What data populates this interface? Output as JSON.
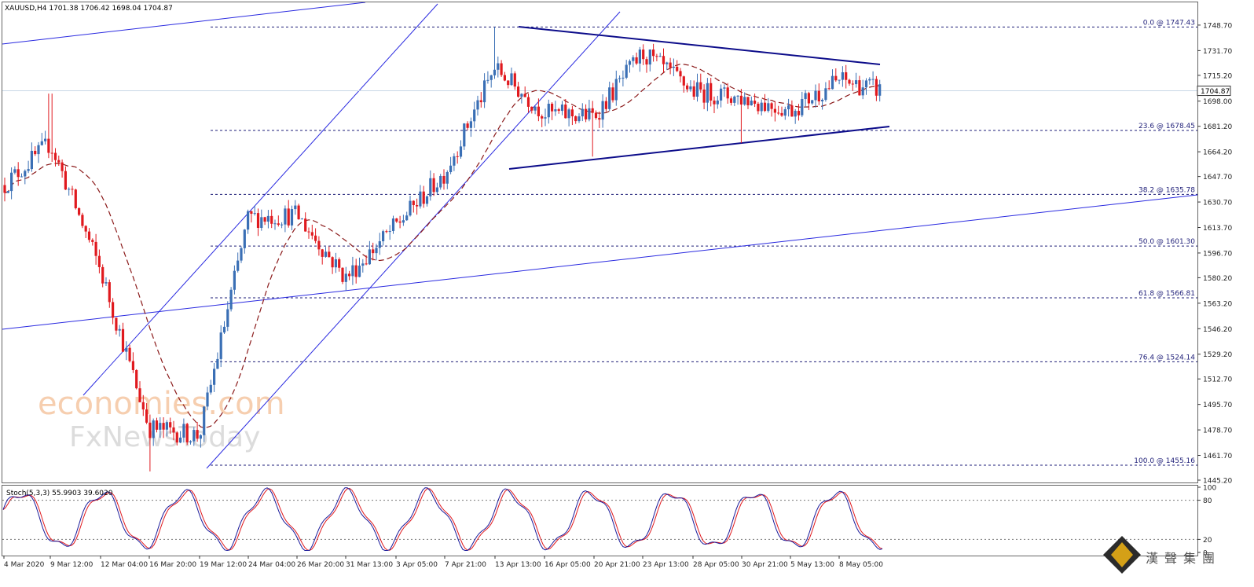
{
  "chart_data": {
    "type": "candlestick",
    "symbol_header": "XAUUSD,H4  1701.38 1706.42 1698.04 1704.87",
    "last_price": 1704.87,
    "last_price_label": "1704.87",
    "ylim": [
      1445.2,
      1756.0
    ],
    "y_ticks": [
      1748.7,
      1731.7,
      1715.2,
      1698.0,
      1681.2,
      1664.2,
      1647.7,
      1630.7,
      1613.7,
      1596.7,
      1580.2,
      1563.2,
      1546.2,
      1529.2,
      1512.7,
      1495.7,
      1478.7,
      1461.7,
      1445.2
    ],
    "y_tick_labels": [
      "1748.70",
      "1731.70",
      "1715.20",
      "1698.00",
      "1681.20",
      "1664.20",
      "1647.70",
      "1630.70",
      "1613.70",
      "1596.70",
      "1580.20",
      "1563.20",
      "1546.20",
      "1529.20",
      "1512.70",
      "1495.70",
      "1478.70",
      "1461.70",
      "1445.20"
    ],
    "x_tick_labels": [
      "4 Mar 2020",
      "9 Mar 12:00",
      "12 Mar 04:00",
      "16 Mar 20:00",
      "19 Mar 12:00",
      "24 Mar 04:00",
      "26 Mar 20:00",
      "31 Mar 13:00",
      "3 Apr 05:00",
      "7 Apr 21:00",
      "13 Apr 13:00",
      "16 Apr 05:00",
      "20 Apr 21:00",
      "23 Apr 13:00",
      "28 Apr 05:00",
      "30 Apr 21:00",
      "5 May 13:00",
      "8 May 05:00"
    ],
    "fibonacci_levels": [
      {
        "label": "0.0 @ 1747.43",
        "value": 1747.43
      },
      {
        "label": "23.6 @ 1678.45",
        "value": 1678.45
      },
      {
        "label": "38.2 @ 1635.78",
        "value": 1635.78
      },
      {
        "label": "50.0 @ 1601.30",
        "value": 1601.3
      },
      {
        "label": "61.8 @ 1566.81",
        "value": 1566.81
      },
      {
        "label": "76.4 @ 1524.14",
        "value": 1524.14
      },
      {
        "label": "100.0 @ 1455.16",
        "value": 1455.16
      }
    ],
    "key_points": [
      {
        "x": "4 Mar 2020",
        "close": 1642
      },
      {
        "x": "9 Mar 12:00",
        "high": 1703,
        "close": 1670
      },
      {
        "x": "12 Mar 04:00",
        "close": 1585
      },
      {
        "x": "16 Mar 20:00",
        "low": 1451,
        "close": 1480
      },
      {
        "x": "19 Mar 12:00",
        "close": 1475
      },
      {
        "x": "24 Mar 04:00",
        "close": 1620
      },
      {
        "x": "26 Mar 20:00",
        "close": 1622
      },
      {
        "x": "31 Mar 13:00",
        "close": 1580
      },
      {
        "x": "3 Apr 05:00",
        "close": 1615
      },
      {
        "x": "7 Apr 21:00",
        "close": 1650
      },
      {
        "x": "13 Apr 13:00",
        "high": 1747.43,
        "close": 1720
      },
      {
        "x": "16 Apr 05:00",
        "close": 1690
      },
      {
        "x": "20 Apr 21:00",
        "low": 1661,
        "close": 1688
      },
      {
        "x": "23 Apr 13:00",
        "close": 1730
      },
      {
        "x": "28 Apr 05:00",
        "close": 1705
      },
      {
        "x": "30 Apr 21:00",
        "low": 1670,
        "close": 1700
      },
      {
        "x": "5 May 13:00",
        "close": 1692
      },
      {
        "x": "8 May 05:00",
        "close": 1712
      },
      {
        "x": "end",
        "close": 1704.87
      }
    ],
    "oscillator": {
      "label": "Stoch(5,3,3) 55.9903 39.6020",
      "ylim": [
        0,
        100
      ],
      "ticks": [
        100,
        80,
        20,
        0
      ],
      "tick_labels": [
        "100",
        "80",
        "20",
        "0"
      ]
    },
    "watermark_lines": [
      "economies.com",
      "FxNewsToday"
    ],
    "corner_logo": "漢聲集團"
  }
}
